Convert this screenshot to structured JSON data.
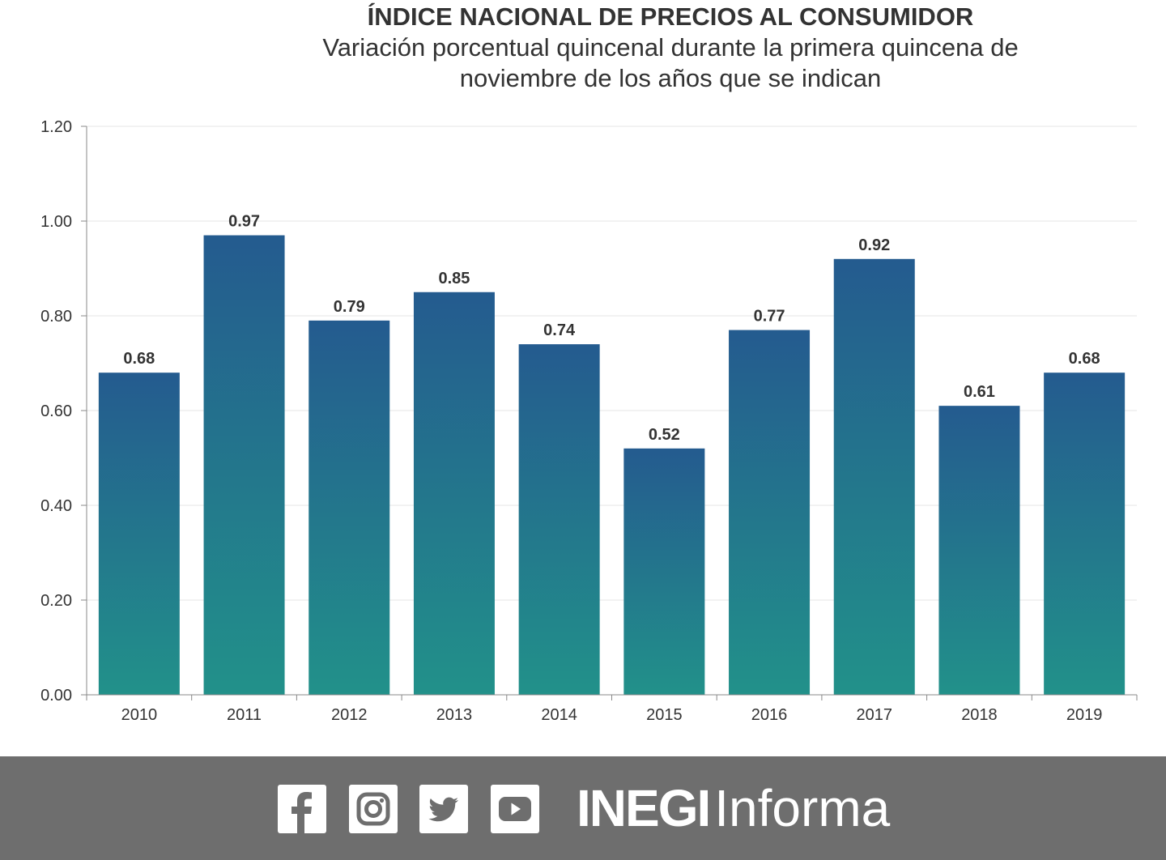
{
  "chart_data": {
    "type": "bar",
    "title": "ÍNDICE NACIONAL DE PRECIOS AL CONSUMIDOR",
    "subtitle_lines": [
      "Variación porcentual quincenal durante la primera quincena de",
      "noviembre de los años que se indican"
    ],
    "categories": [
      "2010",
      "2011",
      "2012",
      "2013",
      "2014",
      "2015",
      "2016",
      "2017",
      "2018",
      "2019"
    ],
    "values": [
      0.68,
      0.97,
      0.79,
      0.85,
      0.74,
      0.52,
      0.77,
      0.92,
      0.61,
      0.68
    ],
    "data_labels": [
      "0.68",
      "0.97",
      "0.79",
      "0.85",
      "0.74",
      "0.52",
      "0.77",
      "0.92",
      "0.61",
      "0.68"
    ],
    "yticks": [
      "0.00",
      "0.20",
      "0.40",
      "0.60",
      "0.80",
      "1.00",
      "1.20"
    ],
    "ylim": [
      0,
      1.2
    ],
    "xlabel": "",
    "ylabel": "",
    "grid": true,
    "legend": "none",
    "colors": {
      "bar_top": "#245b8f",
      "bar_bottom": "#22918a",
      "grid": "#e6e6e6",
      "axis": "#888888"
    }
  },
  "footer": {
    "icons": [
      "facebook-icon",
      "instagram-icon",
      "twitter-icon",
      "youtube-icon"
    ],
    "brand_bold": "INEGI",
    "brand_regular": "Informa",
    "background": "#6e6e6e"
  }
}
